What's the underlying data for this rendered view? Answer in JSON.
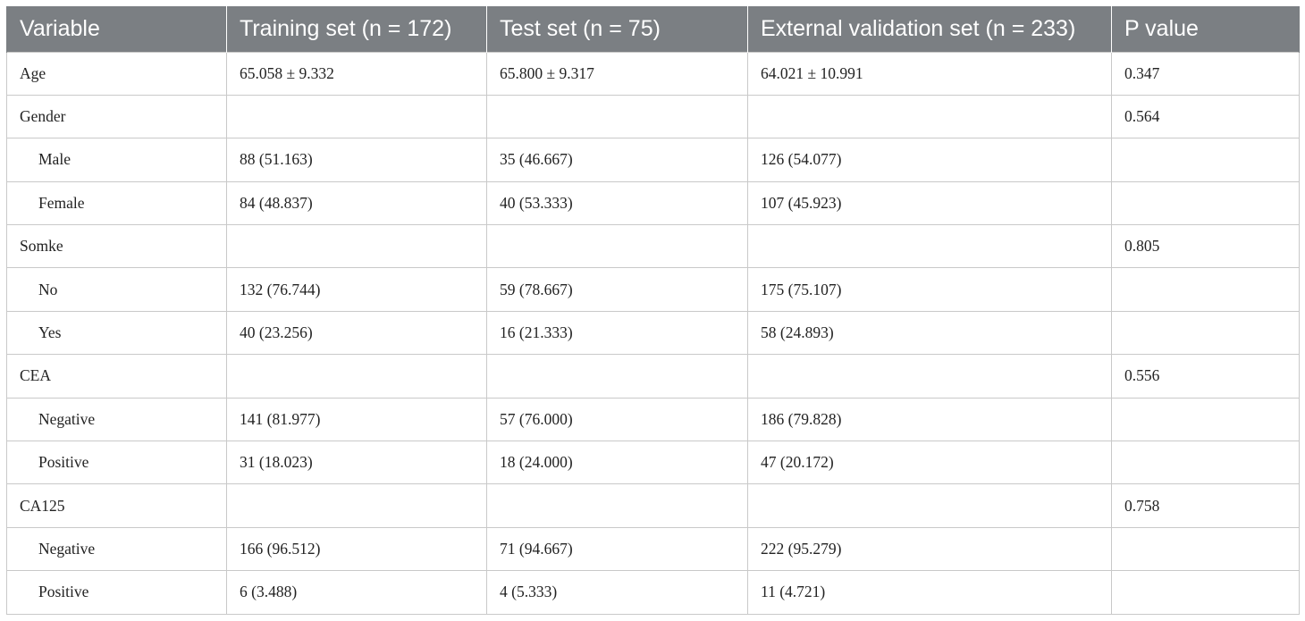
{
  "table": {
    "headers": [
      "Variable",
      "Training set (n = 172)",
      "Test set (n = 75)",
      "External validation set (n = 233)",
      "P value"
    ],
    "rows": [
      {
        "indent": false,
        "cells": [
          "Age",
          "65.058 ± 9.332",
          "65.800 ± 9.317",
          "64.021 ± 10.991",
          "0.347"
        ]
      },
      {
        "indent": false,
        "cells": [
          "Gender",
          "",
          "",
          "",
          "0.564"
        ]
      },
      {
        "indent": true,
        "cells": [
          "Male",
          "88 (51.163)",
          "35 (46.667)",
          "126 (54.077)",
          ""
        ]
      },
      {
        "indent": true,
        "cells": [
          "Female",
          "84 (48.837)",
          "40 (53.333)",
          "107 (45.923)",
          ""
        ]
      },
      {
        "indent": false,
        "cells": [
          "Somke",
          "",
          "",
          "",
          "0.805"
        ]
      },
      {
        "indent": true,
        "cells": [
          "No",
          "132 (76.744)",
          "59 (78.667)",
          "175 (75.107)",
          ""
        ]
      },
      {
        "indent": true,
        "cells": [
          "Yes",
          "40 (23.256)",
          "16 (21.333)",
          "58 (24.893)",
          ""
        ]
      },
      {
        "indent": false,
        "cells": [
          "CEA",
          "",
          "",
          "",
          "0.556"
        ]
      },
      {
        "indent": true,
        "cells": [
          "Negative",
          "141 (81.977)",
          "57 (76.000)",
          "186 (79.828)",
          ""
        ]
      },
      {
        "indent": true,
        "cells": [
          "Positive",
          "31 (18.023)",
          "18 (24.000)",
          "47 (20.172)",
          ""
        ]
      },
      {
        "indent": false,
        "cells": [
          "CA125",
          "",
          "",
          "",
          "0.758"
        ]
      },
      {
        "indent": true,
        "cells": [
          "Negative",
          "166 (96.512)",
          "71 (94.667)",
          "222 (95.279)",
          ""
        ]
      },
      {
        "indent": true,
        "cells": [
          "Positive",
          "6 (3.488)",
          "4 (5.333)",
          "11 (4.721)",
          ""
        ]
      }
    ]
  }
}
